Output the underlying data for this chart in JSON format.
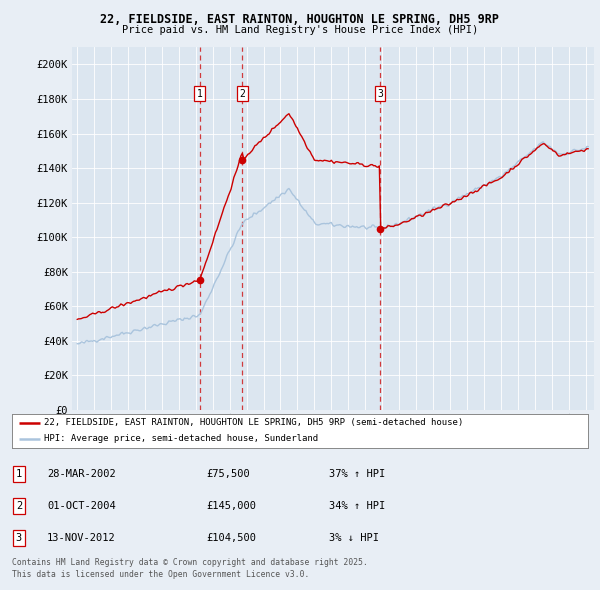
{
  "title1": "22, FIELDSIDE, EAST RAINTON, HOUGHTON LE SPRING, DH5 9RP",
  "title2": "Price paid vs. HM Land Registry's House Price Index (HPI)",
  "background_color": "#e8eef5",
  "plot_bg": "#dce6f0",
  "legend_entry1": "22, FIELDSIDE, EAST RAINTON, HOUGHTON LE SPRING, DH5 9RP (semi-detached house)",
  "legend_entry2": "HPI: Average price, semi-detached house, Sunderland",
  "transactions": [
    {
      "num": 1,
      "date": "28-MAR-2002",
      "price": 75500,
      "year": 2002.24,
      "hpi_pct": "37% ↑ HPI"
    },
    {
      "num": 2,
      "date": "01-OCT-2004",
      "price": 145000,
      "year": 2004.75,
      "hpi_pct": "34% ↑ HPI"
    },
    {
      "num": 3,
      "date": "13-NOV-2012",
      "price": 104500,
      "year": 2012.87,
      "hpi_pct": "3% ↓ HPI"
    }
  ],
  "footer1": "Contains HM Land Registry data © Crown copyright and database right 2025.",
  "footer2": "This data is licensed under the Open Government Licence v3.0.",
  "ylim": [
    0,
    210000
  ],
  "yticks": [
    0,
    20000,
    40000,
    60000,
    80000,
    100000,
    120000,
    140000,
    160000,
    180000,
    200000
  ],
  "ylabels": [
    "£0",
    "£20K",
    "£40K",
    "£60K",
    "£80K",
    "£100K",
    "£120K",
    "£140K",
    "£160K",
    "£180K",
    "£200K"
  ],
  "hpi_color": "#aac4dd",
  "price_color": "#cc0000",
  "dashed_line_color": "#cc0000",
  "box_color": "#cc0000"
}
